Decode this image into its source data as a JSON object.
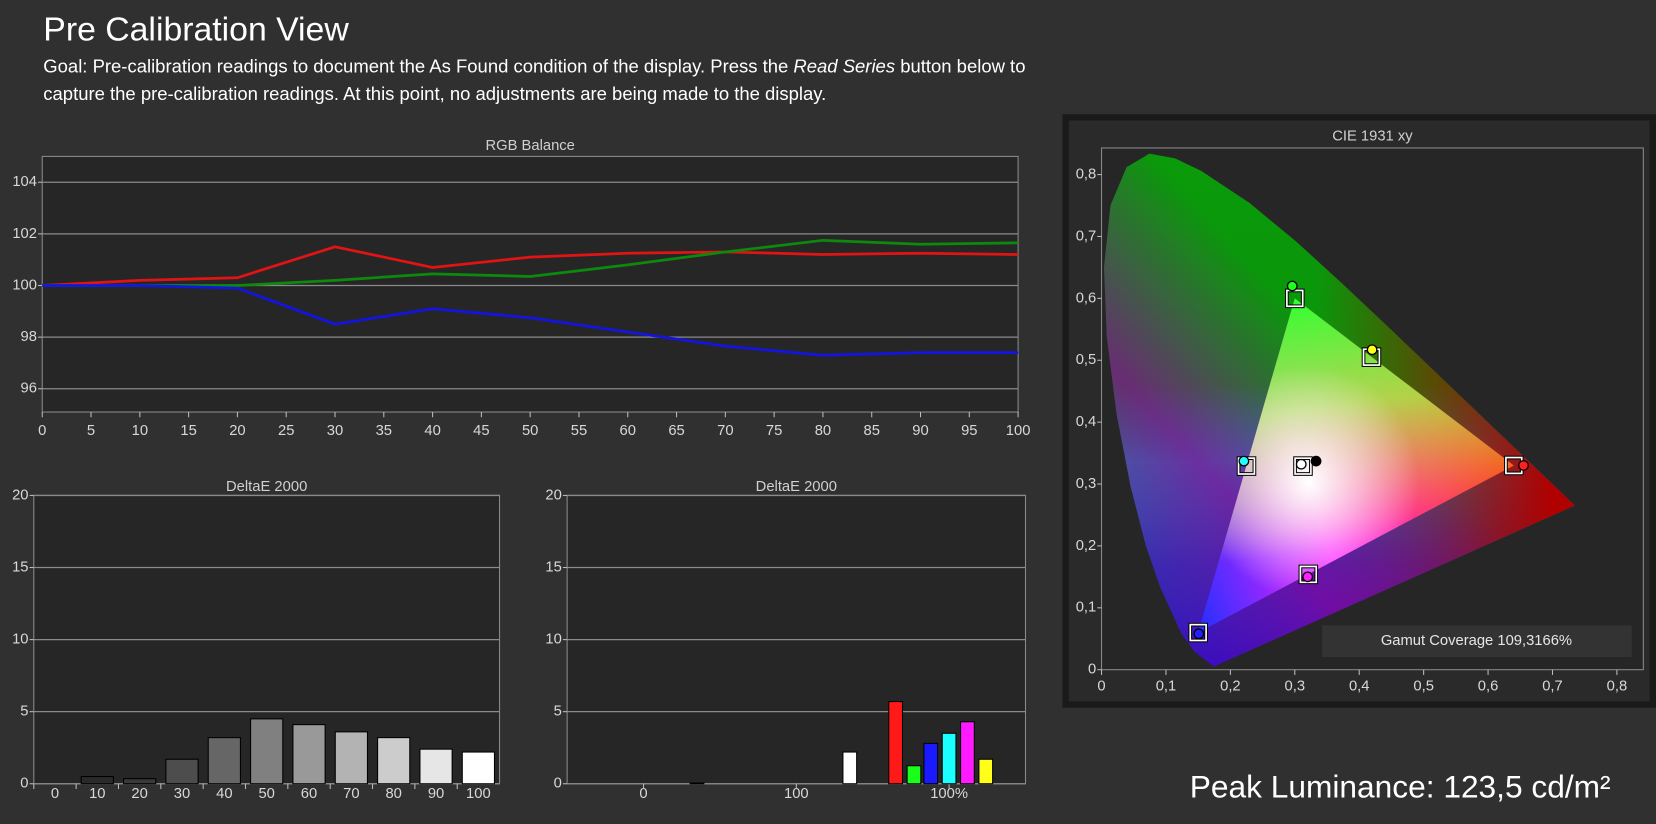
{
  "header": {
    "title": "Pre Calibration View",
    "goal": [
      "Goal: Pre-calibration readings to document the As Found condition of the display. Press the ",
      "Read Series",
      " button below to",
      "capture the pre-calibration readings. At this point, no adjustments are being made to the display."
    ]
  },
  "footer": {
    "peak_luminance": "Peak Luminance: 123,5 cd/m²"
  },
  "chart_data": [
    {
      "type": "line",
      "title": "RGB Balance",
      "x": [
        0,
        10,
        20,
        30,
        40,
        50,
        60,
        70,
        80,
        90,
        100
      ],
      "xlim": [
        0,
        100
      ],
      "xticks": [
        0,
        5,
        10,
        15,
        20,
        25,
        30,
        35,
        40,
        45,
        50,
        55,
        60,
        65,
        70,
        75,
        80,
        85,
        90,
        95,
        100
      ],
      "ylim": [
        95.1,
        105
      ],
      "yticks": [
        96,
        98,
        100,
        102,
        104
      ],
      "grid": true,
      "series": [
        {
          "color": "#e01414",
          "values": [
            100,
            100.2,
            100.3,
            101.5,
            100.7,
            101.1,
            101.25,
            101.3,
            101.2,
            101.25,
            101.2
          ]
        },
        {
          "color": "#0c8a0c",
          "values": [
            100,
            100,
            100,
            100.2,
            100.45,
            100.35,
            100.8,
            101.3,
            101.75,
            101.6,
            101.65
          ]
        },
        {
          "color": "#1414e0",
          "values": [
            100,
            100,
            99.9,
            98.5,
            99.1,
            98.75,
            98.2,
            97.65,
            97.3,
            97.4,
            97.4
          ]
        }
      ]
    },
    {
      "type": "bar",
      "title": "DeltaE 2000",
      "categories": [
        "0",
        "10",
        "20",
        "30",
        "40",
        "50",
        "60",
        "70",
        "80",
        "90",
        "100"
      ],
      "values": [
        0,
        0.5,
        0.35,
        1.7,
        3.2,
        4.5,
        4.1,
        3.6,
        3.2,
        2.4,
        2.2
      ],
      "colors": [
        "#1a1a1a",
        "#2a2a2a",
        "#3a3a3a",
        "#4d4d4d",
        "#666666",
        "#808080",
        "#999999",
        "#b3b3b3",
        "#cccccc",
        "#e6e6e6",
        "#ffffff"
      ],
      "ylim": [
        0,
        20
      ],
      "yticks": [
        0,
        5,
        10,
        15,
        20
      ],
      "grid": true
    },
    {
      "type": "bar",
      "title": "DeltaE 2000",
      "x": [
        0.85,
        1.85,
        2.15,
        2.27,
        2.38,
        2.5,
        2.62,
        2.74
      ],
      "values": [
        0.05,
        2.2,
        5.7,
        1.25,
        2.8,
        3.5,
        4.3,
        1.7
      ],
      "colors": [
        "#bbbbbb",
        "#ffffff",
        "#ff1a1a",
        "#1aff1a",
        "#1a1aff",
        "#1affff",
        "#ff1aff",
        "#ffff1a"
      ],
      "xlim": [
        0,
        3
      ],
      "xticks": [
        {
          "value": 0.5,
          "label": "0"
        },
        {
          "value": 1.5,
          "label": "100"
        },
        {
          "value": 2.5,
          "label": "100%"
        }
      ],
      "ylim": [
        0,
        20
      ],
      "yticks": [
        0,
        5,
        10,
        15,
        20
      ],
      "grid": true
    },
    {
      "type": "scatter",
      "title": "CIE 1931 xy",
      "xlim": [
        0,
        0.841
      ],
      "ylim": [
        0,
        0.843
      ],
      "xticks": [
        0,
        {
          "value": 0.1,
          "label": "0,1"
        },
        {
          "value": 0.2,
          "label": "0,2"
        },
        {
          "value": 0.3,
          "label": "0,3"
        },
        {
          "value": 0.4,
          "label": "0,4"
        },
        {
          "value": 0.5,
          "label": "0,5"
        },
        {
          "value": 0.6,
          "label": "0,6"
        },
        {
          "value": 0.7,
          "label": "0,7"
        },
        {
          "value": 0.8,
          "label": "0,8"
        }
      ],
      "yticks": [
        0,
        {
          "value": 0.1,
          "label": "0,1"
        },
        {
          "value": 0.2,
          "label": "0,2"
        },
        {
          "value": 0.3,
          "label": "0,3"
        },
        {
          "value": 0.4,
          "label": "0,4"
        },
        {
          "value": 0.5,
          "label": "0,5"
        },
        {
          "value": 0.6,
          "label": "0,6"
        },
        {
          "value": 0.7,
          "label": "0,7"
        },
        {
          "value": 0.8,
          "label": "0,8"
        }
      ],
      "grid": false,
      "series": [
        {
          "marker": "square",
          "color": "#ffffff",
          "x": [
            0.64,
            0.3,
            0.15,
            0.225,
            0.321,
            0.419,
            0.3127
          ],
          "y": [
            0.33,
            0.6,
            0.06,
            0.329,
            0.154,
            0.505,
            0.329
          ]
        },
        {
          "marker": "circle",
          "colors": [
            "#ff2020",
            "#20ff20",
            "#2020ff",
            "#20ffff",
            "#ff20ff",
            "#ffff20",
            "#ffffff"
          ],
          "x": [
            0.655,
            0.296,
            0.151,
            0.221,
            0.32,
            0.42,
            0.31
          ],
          "y": [
            0.33,
            0.62,
            0.058,
            0.337,
            0.15,
            0.517,
            0.332
          ]
        },
        {
          "marker": "circle",
          "color": "#000000",
          "x": [
            0.333
          ],
          "y": [
            0.337
          ]
        }
      ],
      "annotation": "Gamut Coverage 109,3166%"
    }
  ]
}
